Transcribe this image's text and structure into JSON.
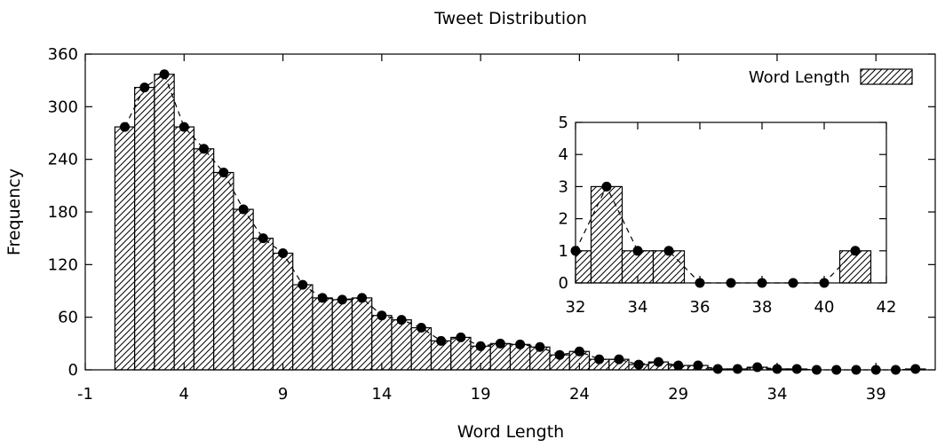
{
  "chart_data": [
    {
      "type": "bar",
      "title": "Tweet Distribution",
      "xlabel": "Word Length",
      "ylabel": "Frequency",
      "legend": {
        "label": "Word Length",
        "placement": "top-right"
      },
      "xlim": [
        -1,
        42
      ],
      "ylim": [
        0,
        360
      ],
      "xticks": [
        "-1",
        "4",
        "9",
        "14",
        "19",
        "24",
        "29",
        "34",
        "39"
      ],
      "yticks": [
        "0",
        "60",
        "120",
        "180",
        "240",
        "300",
        "360"
      ],
      "grid": false,
      "x": [
        1,
        2,
        3,
        4,
        5,
        6,
        7,
        8,
        9,
        10,
        11,
        12,
        13,
        14,
        15,
        16,
        17,
        18,
        19,
        20,
        21,
        22,
        23,
        24,
        25,
        26,
        27,
        28,
        29,
        30,
        31,
        32,
        33,
        34,
        35,
        36,
        37,
        38,
        39,
        40,
        41
      ],
      "values": [
        277,
        322,
        337,
        277,
        252,
        225,
        183,
        150,
        133,
        97,
        82,
        80,
        82,
        62,
        57,
        48,
        33,
        37,
        27,
        30,
        29,
        26,
        17,
        21,
        12,
        12,
        6,
        9,
        5,
        5,
        1,
        1,
        3,
        1,
        1,
        0,
        0,
        0,
        0,
        0,
        1
      ],
      "marker_style": "filled-circle-dashed-line",
      "bar_fill": "diagonal-hatch"
    },
    {
      "type": "bar",
      "title": "",
      "inset": true,
      "xlim": [
        32,
        42
      ],
      "ylim": [
        0,
        5
      ],
      "xticks": [
        "32",
        "34",
        "36",
        "38",
        "40",
        "42"
      ],
      "yticks": [
        "0",
        "1",
        "2",
        "3",
        "4",
        "5"
      ],
      "x": [
        32,
        33,
        34,
        35,
        36,
        37,
        38,
        39,
        40,
        41
      ],
      "values": [
        1,
        3,
        1,
        1,
        0,
        0,
        0,
        0,
        0,
        1
      ]
    }
  ]
}
